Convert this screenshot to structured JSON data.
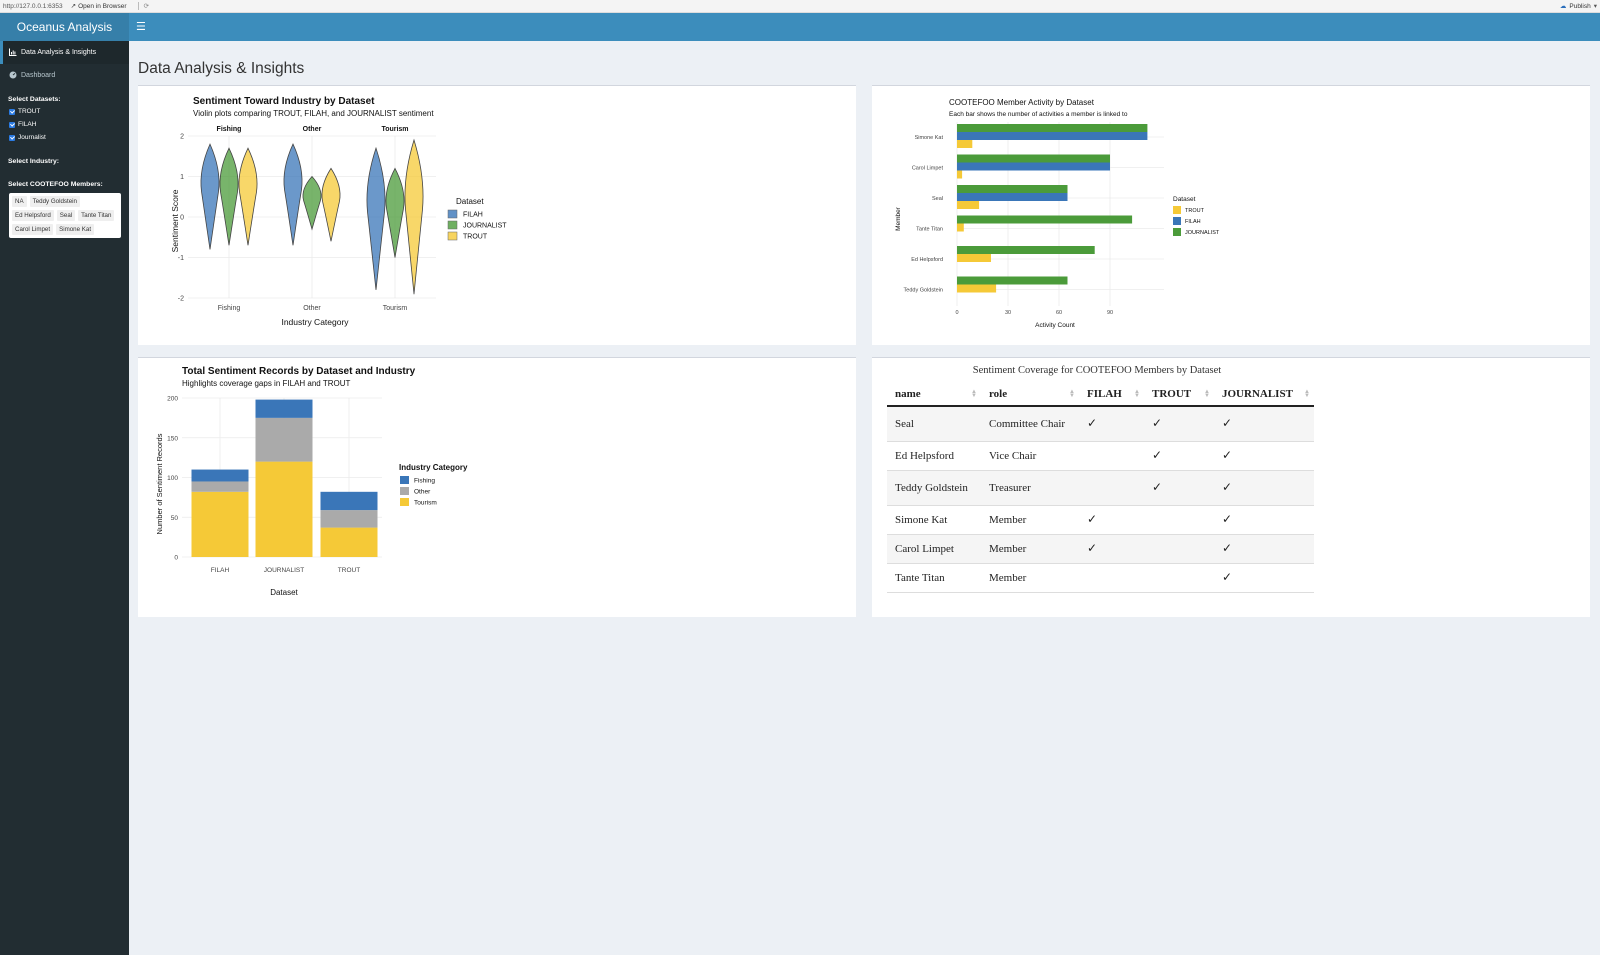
{
  "browser": {
    "url": "http://127.0.0.1:6353",
    "open_label": "Open in Browser",
    "publish_label": "Publish"
  },
  "app": {
    "title": "Oceanus Analysis"
  },
  "sidebar": {
    "menu": [
      {
        "label": "Data Analysis & Insights",
        "icon": "chart-icon",
        "active": true
      },
      {
        "label": "Dashboard",
        "icon": "dashboard-icon",
        "active": false
      }
    ],
    "datasets_label": "Select Datasets:",
    "datasets": [
      {
        "label": "TROUT",
        "checked": true
      },
      {
        "label": "FILAH",
        "checked": true
      },
      {
        "label": "Journalist",
        "checked": true
      }
    ],
    "industry_label": "Select Industry:",
    "members_label": "Select COOTEFOO Members:",
    "members": [
      "NA",
      "Teddy Goldstein",
      "Ed Helpsford",
      "Seal",
      "Tante Titan",
      "Carol Limpet",
      "Simone Kat"
    ]
  },
  "page": {
    "title": "Data Analysis & Insights"
  },
  "colors": {
    "FILAH": "#3a76b8",
    "JOURNALIST": "#4b9b3a",
    "TROUT": "#f5c937",
    "Fishing": "#3a76b8",
    "Other": "#aaaaaa",
    "Tourism": "#f5c937"
  },
  "chart_data": [
    {
      "type": "violin",
      "title": "Sentiment Toward Industry by Dataset",
      "subtitle": "Violin plots comparing TROUT, FILAH, and JOURNALIST sentiment",
      "xlabel": "Industry Category",
      "ylabel": "Sentiment Score",
      "facets": [
        "Fishing",
        "Other",
        "Tourism"
      ],
      "categories": [
        "Fishing",
        "Other",
        "Tourism"
      ],
      "y_ticks": [
        2,
        1,
        0,
        -1,
        -2
      ],
      "ylim": [
        -2,
        2
      ],
      "legend_title": "Dataset",
      "series": [
        {
          "name": "FILAH",
          "min": [
            -0.8,
            -0.7,
            -1.8
          ],
          "max": [
            1.8,
            1.8,
            1.7
          ]
        },
        {
          "name": "JOURNALIST",
          "min": [
            -0.7,
            -0.3,
            -1.0
          ],
          "max": [
            1.7,
            1.0,
            1.2
          ]
        },
        {
          "name": "TROUT",
          "min": [
            -0.7,
            -0.6,
            -1.9
          ],
          "max": [
            1.7,
            1.2,
            1.9
          ]
        }
      ]
    },
    {
      "type": "bar",
      "orientation": "horizontal",
      "title": "COOTEFOO Member Activity by Dataset",
      "subtitle": "Each bar shows the number of activities a member is linked to",
      "xlabel": "Activity Count",
      "ylabel": "Member",
      "categories": [
        "Simone Kat",
        "Carol Limpet",
        "Seal",
        "Tante Titan",
        "Ed Helpsford",
        "Teddy Goldstein"
      ],
      "x_ticks": [
        0,
        30,
        60,
        90
      ],
      "legend_title": "Dataset",
      "legend": [
        "TROUT",
        "FILAH",
        "JOURNALIST"
      ],
      "series": [
        {
          "name": "JOURNALIST",
          "values": [
            112,
            90,
            65,
            103,
            81,
            65
          ]
        },
        {
          "name": "FILAH",
          "values": [
            112,
            90,
            65,
            0,
            0,
            0
          ]
        },
        {
          "name": "TROUT",
          "values": [
            9,
            3,
            13,
            4,
            20,
            23
          ]
        }
      ]
    },
    {
      "type": "bar",
      "stacked": true,
      "title": "Total Sentiment Records by Dataset and Industry",
      "subtitle": "Highlights coverage gaps in FILAH and TROUT",
      "xlabel": "Dataset",
      "ylabel": "Number of Sentiment Records",
      "categories": [
        "FILAH",
        "JOURNALIST",
        "TROUT"
      ],
      "y_ticks": [
        0,
        50,
        100,
        150,
        200
      ],
      "ylim": [
        0,
        200
      ],
      "legend_title": "Industry Category",
      "series": [
        {
          "name": "Fishing",
          "values": [
            15,
            23,
            23
          ]
        },
        {
          "name": "Other",
          "values": [
            13,
            55,
            22
          ]
        },
        {
          "name": "Tourism",
          "values": [
            82,
            120,
            37
          ]
        }
      ]
    }
  ],
  "table": {
    "title": "Sentiment Coverage for COOTEFOO Members by Dataset",
    "columns": [
      "name",
      "role",
      "FILAH",
      "TROUT",
      "JOURNALIST"
    ],
    "check_glyph": "✓",
    "rows": [
      {
        "name": "Seal",
        "role": "Committee Chair",
        "FILAH": "✓",
        "TROUT": "✓",
        "JOURNALIST": "✓"
      },
      {
        "name": "Ed Helpsford",
        "role": "Vice Chair",
        "FILAH": "",
        "TROUT": "✓",
        "JOURNALIST": "✓"
      },
      {
        "name": "Teddy Goldstein",
        "role": "Treasurer",
        "FILAH": "",
        "TROUT": "✓",
        "JOURNALIST": "✓"
      },
      {
        "name": "Simone Kat",
        "role": "Member",
        "FILAH": "✓",
        "TROUT": "",
        "JOURNALIST": "✓"
      },
      {
        "name": "Carol Limpet",
        "role": "Member",
        "FILAH": "✓",
        "TROUT": "",
        "JOURNALIST": "✓"
      },
      {
        "name": "Tante Titan",
        "role": "Member",
        "FILAH": "",
        "TROUT": "",
        "JOURNALIST": "✓"
      }
    ]
  }
}
